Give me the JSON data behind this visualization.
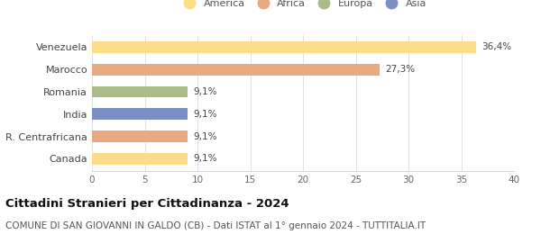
{
  "categories": [
    "Venezuela",
    "Marocco",
    "Romania",
    "India",
    "R. Centrafricana",
    "Canada"
  ],
  "values": [
    36.4,
    27.3,
    9.1,
    9.1,
    9.1,
    9.1
  ],
  "labels": [
    "36,4%",
    "27,3%",
    "9,1%",
    "9,1%",
    "9,1%",
    "9,1%"
  ],
  "bar_colors": [
    "#FDDC8A",
    "#E8AA82",
    "#AABB88",
    "#7A8FC2",
    "#E8AA82",
    "#FDDC8A"
  ],
  "legend_entries": [
    "America",
    "Africa",
    "Europa",
    "Asia"
  ],
  "legend_colors": [
    "#FDDC8A",
    "#E8AA82",
    "#AABB88",
    "#7A8FC2"
  ],
  "title": "Cittadini Stranieri per Cittadinanza - 2024",
  "subtitle": "COMUNE DI SAN GIOVANNI IN GALDO (CB) - Dati ISTAT al 1° gennaio 2024 - TUTTITALIA.IT",
  "xlim": [
    0,
    40
  ],
  "xticks": [
    0,
    5,
    10,
    15,
    20,
    25,
    30,
    35,
    40
  ],
  "background_color": "#ffffff",
  "title_fontsize": 9.5,
  "subtitle_fontsize": 7.5,
  "label_fontsize": 7.5,
  "ytick_fontsize": 8,
  "xtick_fontsize": 7.5,
  "bar_height": 0.52
}
